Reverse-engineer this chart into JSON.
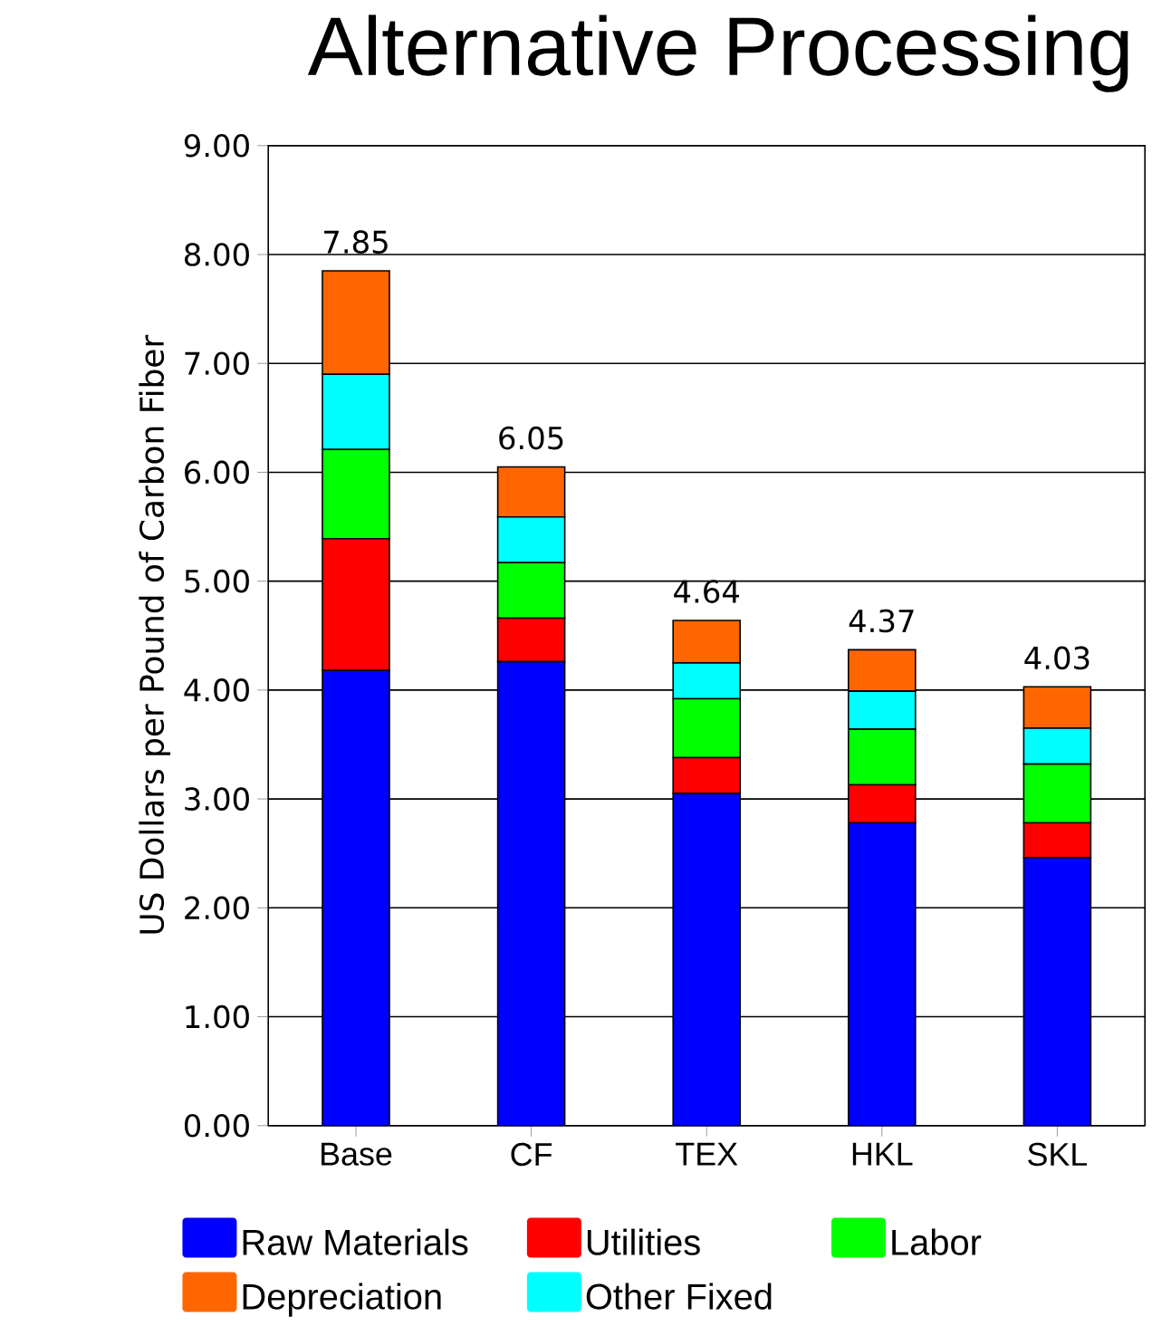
{
  "chart_data": {
    "type": "bar",
    "stacked": true,
    "title": "Alternative Processing",
    "ylabel": "US Dollars per Pound of Carbon Fiber",
    "categories": [
      "Base",
      "CF",
      "TEX",
      "HKL",
      "SKL"
    ],
    "series": [
      {
        "name": "Raw Materials",
        "color": "#0000ff",
        "values": [
          4.18,
          4.26,
          3.05,
          2.78,
          2.46
        ]
      },
      {
        "name": "Utilities",
        "color": "#ff0000",
        "values": [
          1.21,
          0.4,
          0.33,
          0.35,
          0.32
        ]
      },
      {
        "name": "Labor",
        "color": "#00ff00",
        "values": [
          0.82,
          0.51,
          0.54,
          0.51,
          0.54
        ]
      },
      {
        "name": "Other Fixed",
        "color": "#00ffff",
        "values": [
          0.69,
          0.42,
          0.33,
          0.35,
          0.33
        ]
      },
      {
        "name": "Depreciation",
        "color": "#ff6600",
        "values": [
          0.95,
          0.46,
          0.39,
          0.38,
          0.38
        ]
      }
    ],
    "totals": [
      "7.85",
      "6.05",
      "4.64",
      "4.37",
      "4.03"
    ],
    "ylim": [
      0,
      9
    ],
    "yticks": [
      {
        "value": 0,
        "label": "0.00"
      },
      {
        "value": 1,
        "label": "1.00"
      },
      {
        "value": 2,
        "label": "2.00"
      },
      {
        "value": 3,
        "label": "3.00"
      },
      {
        "value": 4,
        "label": "4.00"
      },
      {
        "value": 5,
        "label": "5.00"
      },
      {
        "value": 6,
        "label": "6.00"
      },
      {
        "value": 7,
        "label": "7.00"
      },
      {
        "value": 8,
        "label": "8.00"
      },
      {
        "value": 9,
        "label": "9.00"
      }
    ],
    "grid": "y",
    "legend": "bottom"
  }
}
